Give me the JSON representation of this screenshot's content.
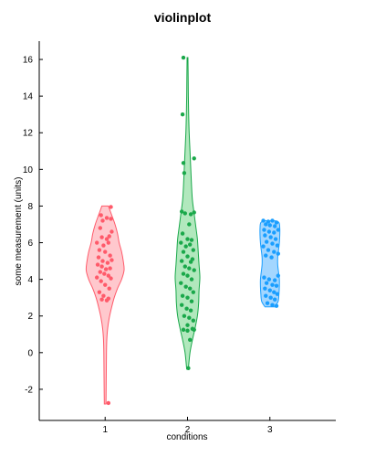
{
  "chart_data": {
    "type": "violin",
    "title": "violinplot",
    "xlabel": "conditions",
    "ylabel": "some measurement (units)",
    "categories": [
      "1",
      "2",
      "3"
    ],
    "xlim": [
      0.2,
      3.8
    ],
    "ylim": [
      -3.7,
      17
    ],
    "yticks": [
      -2,
      0,
      2,
      4,
      6,
      8,
      10,
      12,
      14,
      16
    ],
    "xticks": [
      1,
      2,
      3
    ],
    "grid": false,
    "series": [
      {
        "category": "1",
        "color": "#ff5a6a",
        "fill": "#ffc2c8",
        "edge": "#ff5a6a",
        "profile": [
          [
            -2.8,
            0.01
          ],
          [
            -2.0,
            0.012
          ],
          [
            -1.0,
            0.014
          ],
          [
            0.0,
            0.016
          ],
          [
            0.7,
            0.02
          ],
          [
            1.3,
            0.03
          ],
          [
            1.9,
            0.05
          ],
          [
            2.5,
            0.08
          ],
          [
            3.0,
            0.11
          ],
          [
            3.5,
            0.15
          ],
          [
            4.0,
            0.2
          ],
          [
            4.5,
            0.23
          ],
          [
            5.0,
            0.22
          ],
          [
            5.5,
            0.2
          ],
          [
            6.0,
            0.17
          ],
          [
            6.5,
            0.15
          ],
          [
            7.0,
            0.12
          ],
          [
            7.5,
            0.08
          ],
          [
            8.0,
            0.04
          ]
        ],
        "points": [
          [
            1.07,
            7.95
          ],
          [
            0.95,
            7.5
          ],
          [
            0.97,
            7.2
          ],
          [
            1.02,
            7.35
          ],
          [
            1.07,
            7.3
          ],
          [
            0.94,
            6.8
          ],
          [
            1.08,
            6.6
          ],
          [
            0.96,
            6.3
          ],
          [
            1.02,
            6.2
          ],
          [
            1.05,
            6.35
          ],
          [
            0.9,
            6.0
          ],
          [
            0.98,
            5.85
          ],
          [
            1.04,
            6.0
          ],
          [
            0.93,
            5.6
          ],
          [
            1.0,
            5.5
          ],
          [
            1.06,
            5.3
          ],
          [
            0.92,
            5.2
          ],
          [
            0.97,
            5.0
          ],
          [
            1.03,
            4.9
          ],
          [
            1.08,
            5.05
          ],
          [
            0.91,
            4.8
          ],
          [
            0.96,
            4.7
          ],
          [
            1.01,
            4.55
          ],
          [
            1.06,
            4.6
          ],
          [
            0.94,
            4.4
          ],
          [
            0.99,
            4.3
          ],
          [
            1.04,
            4.2
          ],
          [
            0.9,
            4.1
          ],
          [
            1.07,
            4.05
          ],
          [
            0.95,
            3.9
          ],
          [
            1.0,
            3.7
          ],
          [
            1.05,
            3.5
          ],
          [
            0.93,
            3.3
          ],
          [
            0.98,
            3.1
          ],
          [
            1.04,
            2.95
          ],
          [
            0.96,
            2.9
          ],
          [
            1.02,
            2.85
          ],
          [
            1.04,
            -2.75
          ]
        ]
      },
      {
        "category": "2",
        "color": "#1aa84a",
        "fill": "#a8e6b6",
        "edge": "#1aa84a",
        "profile": [
          [
            -0.9,
            0.01
          ],
          [
            0.0,
            0.03
          ],
          [
            0.7,
            0.06
          ],
          [
            1.3,
            0.09
          ],
          [
            2.0,
            0.12
          ],
          [
            2.7,
            0.135
          ],
          [
            3.4,
            0.14
          ],
          [
            4.1,
            0.15
          ],
          [
            4.8,
            0.14
          ],
          [
            5.5,
            0.13
          ],
          [
            6.2,
            0.12
          ],
          [
            6.9,
            0.1
          ],
          [
            7.6,
            0.08
          ],
          [
            8.3,
            0.06
          ],
          [
            9.0,
            0.05
          ],
          [
            10.0,
            0.04
          ],
          [
            11.0,
            0.03
          ],
          [
            12.0,
            0.02
          ],
          [
            13.0,
            0.014
          ],
          [
            14.0,
            0.01
          ],
          [
            15.0,
            0.008
          ],
          [
            16.1,
            0.005
          ]
        ],
        "points": [
          [
            1.95,
            16.1
          ],
          [
            1.94,
            13.0
          ],
          [
            2.08,
            10.6
          ],
          [
            1.95,
            10.35
          ],
          [
            1.96,
            9.8
          ],
          [
            1.93,
            7.7
          ],
          [
            2.08,
            7.65
          ],
          [
            2.04,
            7.55
          ],
          [
            1.97,
            7.6
          ],
          [
            2.02,
            7.0
          ],
          [
            1.94,
            6.5
          ],
          [
            2.0,
            6.2
          ],
          [
            2.05,
            6.15
          ],
          [
            1.92,
            6.0
          ],
          [
            1.98,
            5.8
          ],
          [
            2.03,
            5.9
          ],
          [
            2.07,
            5.6
          ],
          [
            1.95,
            5.5
          ],
          [
            2.0,
            5.25
          ],
          [
            2.06,
            5.1
          ],
          [
            1.93,
            5.0
          ],
          [
            2.04,
            4.95
          ],
          [
            1.97,
            4.7
          ],
          [
            2.02,
            4.6
          ],
          [
            2.08,
            4.5
          ],
          [
            1.95,
            4.3
          ],
          [
            2.0,
            4.2
          ],
          [
            2.05,
            4.0
          ],
          [
            1.92,
            3.8
          ],
          [
            1.98,
            3.6
          ],
          [
            2.03,
            3.5
          ],
          [
            2.07,
            3.3
          ],
          [
            1.94,
            3.1
          ],
          [
            2.0,
            3.0
          ],
          [
            2.05,
            2.8
          ],
          [
            1.93,
            2.6
          ],
          [
            1.99,
            2.4
          ],
          [
            2.04,
            2.3
          ],
          [
            1.96,
            2.0
          ],
          [
            2.02,
            1.9
          ],
          [
            2.07,
            1.75
          ],
          [
            2.0,
            1.5
          ],
          [
            2.06,
            1.3
          ],
          [
            2.08,
            1.25
          ],
          [
            1.95,
            1.25
          ],
          [
            2.0,
            1.2
          ],
          [
            2.03,
            0.7
          ],
          [
            2.01,
            -0.85
          ]
        ]
      },
      {
        "category": "3",
        "color": "#1a9eff",
        "fill": "#99d2ff",
        "edge": "#1a9eff",
        "profile": [
          [
            2.5,
            0.06
          ],
          [
            2.8,
            0.1
          ],
          [
            3.2,
            0.11
          ],
          [
            3.6,
            0.115
          ],
          [
            4.0,
            0.115
          ],
          [
            4.4,
            0.105
          ],
          [
            4.8,
            0.095
          ],
          [
            5.2,
            0.095
          ],
          [
            5.6,
            0.105
          ],
          [
            6.0,
            0.115
          ],
          [
            6.4,
            0.12
          ],
          [
            6.8,
            0.12
          ],
          [
            7.1,
            0.11
          ],
          [
            7.2,
            0.06
          ]
        ],
        "points": [
          [
            2.92,
            7.2
          ],
          [
            2.98,
            7.15
          ],
          [
            3.03,
            7.2
          ],
          [
            3.08,
            7.1
          ],
          [
            2.95,
            7.0
          ],
          [
            3.0,
            6.95
          ],
          [
            3.06,
            6.9
          ],
          [
            2.93,
            6.7
          ],
          [
            2.99,
            6.6
          ],
          [
            3.05,
            6.55
          ],
          [
            3.1,
            6.7
          ],
          [
            2.94,
            6.4
          ],
          [
            3.01,
            6.3
          ],
          [
            3.07,
            6.2
          ],
          [
            2.96,
            6.05
          ],
          [
            3.03,
            5.95
          ],
          [
            3.09,
            5.85
          ],
          [
            2.92,
            5.8
          ],
          [
            2.98,
            5.6
          ],
          [
            3.05,
            5.5
          ],
          [
            3.1,
            5.4
          ],
          [
            2.95,
            5.3
          ],
          [
            3.02,
            5.2
          ],
          [
            2.93,
            4.1
          ],
          [
            2.99,
            4.0
          ],
          [
            3.06,
            3.95
          ],
          [
            3.1,
            4.2
          ],
          [
            2.96,
            3.8
          ],
          [
            3.03,
            3.7
          ],
          [
            3.08,
            3.65
          ],
          [
            2.94,
            3.5
          ],
          [
            3.0,
            3.4
          ],
          [
            3.05,
            3.3
          ],
          [
            3.09,
            3.2
          ],
          [
            2.95,
            3.1
          ],
          [
            3.01,
            3.0
          ],
          [
            3.06,
            2.9
          ],
          [
            2.97,
            2.7
          ],
          [
            3.03,
            2.6
          ],
          [
            3.08,
            2.55
          ]
        ]
      }
    ]
  }
}
